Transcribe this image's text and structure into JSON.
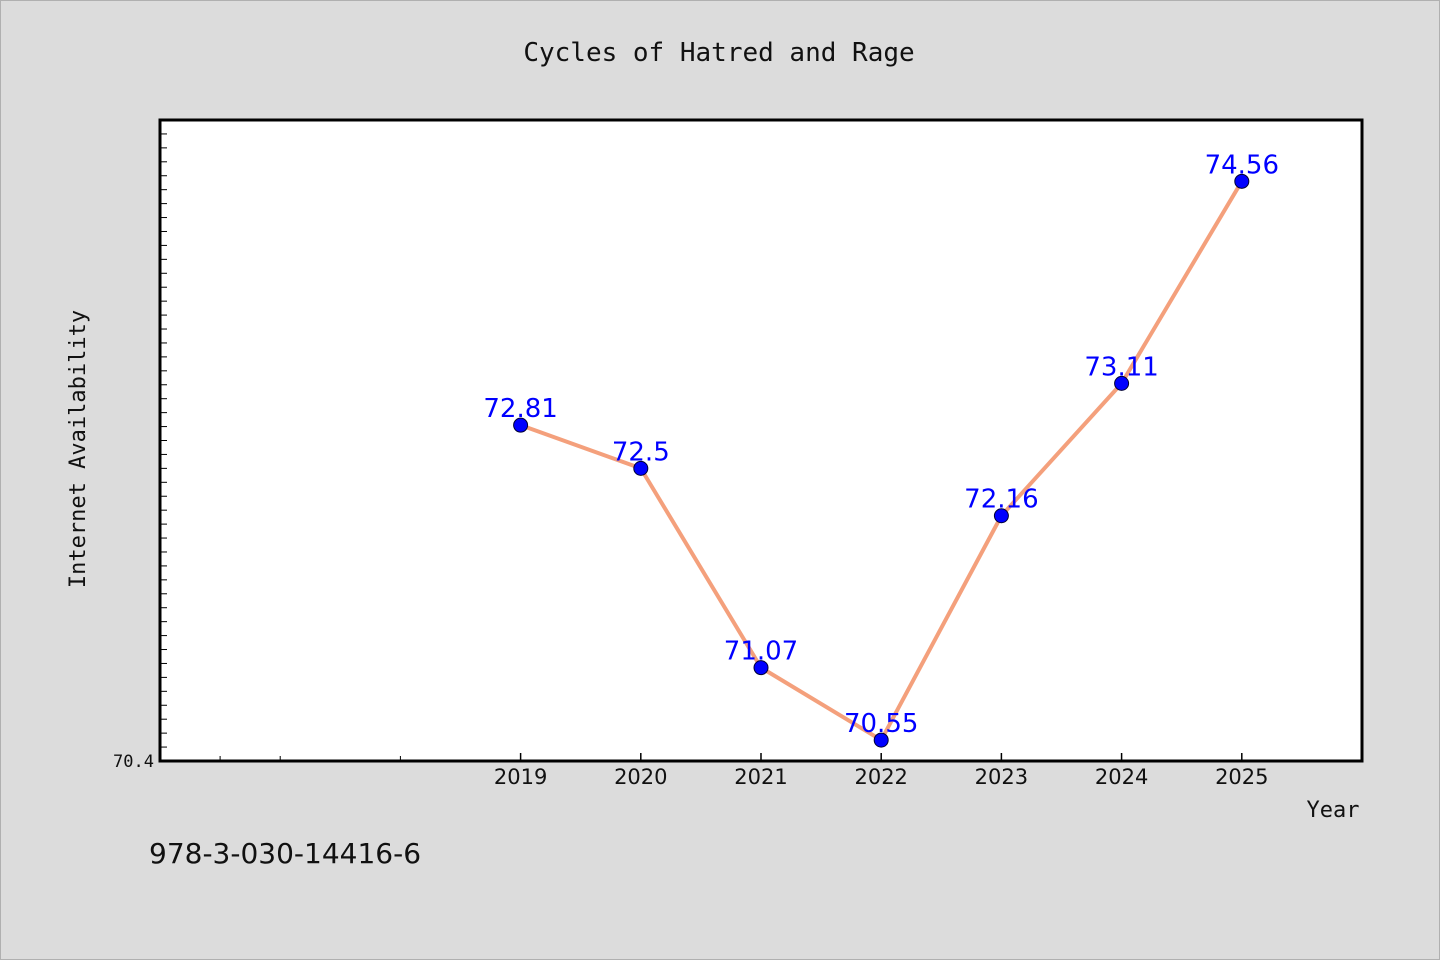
{
  "footer_text": "978-3-030-14416-6",
  "chart_data": {
    "type": "line",
    "title": "Cycles of Hatred and Rage",
    "xlabel": "Year",
    "ylabel": "Internet Availability",
    "x": [
      2019,
      2020,
      2021,
      2022,
      2023,
      2024,
      2025
    ],
    "x_tick_labels": [
      "2019",
      "2020",
      "2021",
      "2022",
      "2023",
      "2024",
      "2025"
    ],
    "series": [
      {
        "values": [
          72.81,
          72.5,
          71.07,
          70.55,
          72.16,
          73.11,
          74.56
        ]
      }
    ],
    "data_labels": [
      "72.81",
      "72.5",
      "71.07",
      "70.55",
      "72.16",
      "73.11",
      "74.56"
    ],
    "y_tick_labels": [
      "70.4"
    ],
    "xlim": [
      2016,
      2026
    ],
    "ylim": [
      70.4,
      75.0
    ],
    "grid": false,
    "line_color": "#f4a07c",
    "marker_color": "#0000ff",
    "label_color": "#0000ff"
  }
}
